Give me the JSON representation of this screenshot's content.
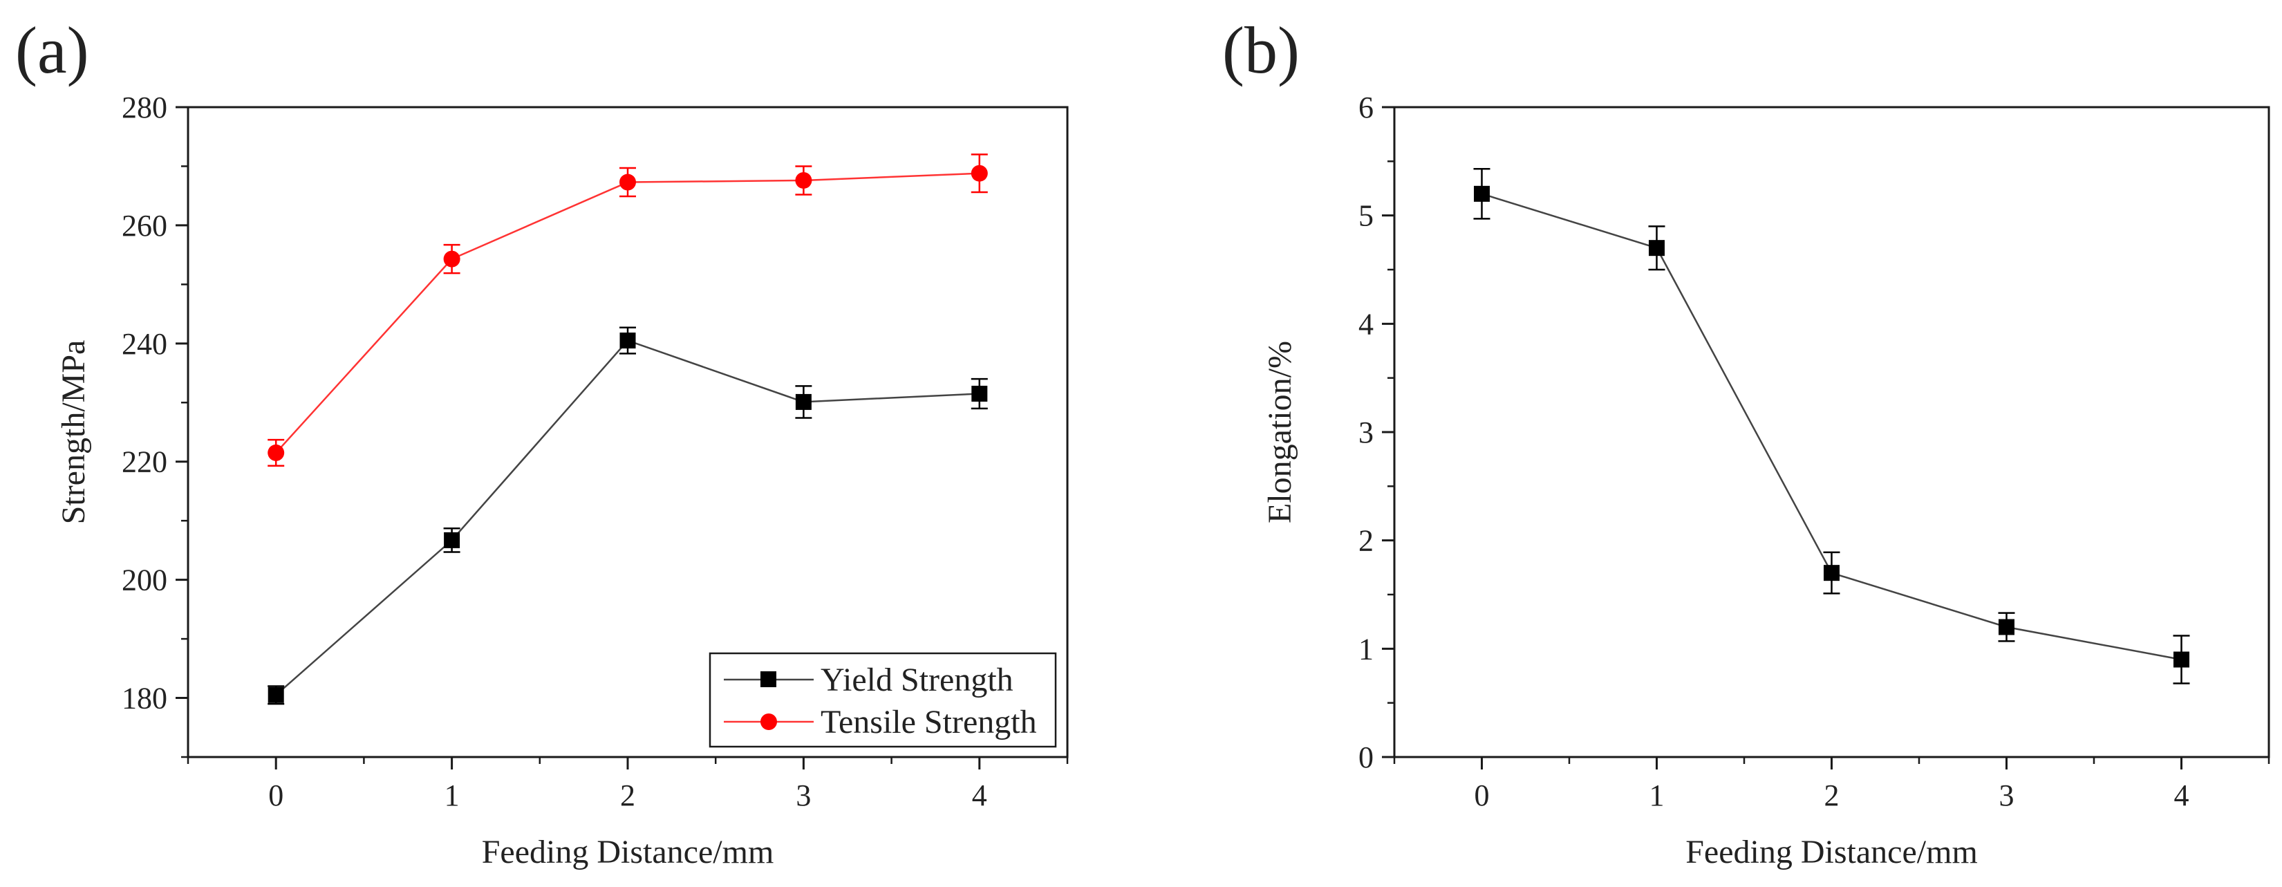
{
  "chart_data": [
    {
      "type": "line",
      "panel_label": "(a)",
      "title": "",
      "xlabel": "Feeding Distance/mm",
      "ylabel": "Strength/MPa",
      "x": [
        0,
        1,
        2,
        3,
        4
      ],
      "x_ticks": [
        "0",
        "1",
        "2",
        "3",
        "4"
      ],
      "xlim": [
        -0.5,
        4.5
      ],
      "ylim": [
        170,
        280
      ],
      "y_ticks": [
        180,
        200,
        220,
        240,
        260,
        280
      ],
      "grid": false,
      "legend": "bottom-right",
      "series": [
        {
          "name": "Yield Strength",
          "marker": "square",
          "color": "#000000",
          "line_color": "#444444",
          "values": [
            180.5,
            206.7,
            240.5,
            230.1,
            231.5
          ],
          "errors": [
            1.5,
            2.0,
            2.2,
            2.7,
            2.5
          ]
        },
        {
          "name": "Tensile Strength",
          "marker": "circle",
          "color": "#ff0000",
          "line_color": "#ff3333",
          "values": [
            221.5,
            254.3,
            267.3,
            267.6,
            268.8
          ],
          "errors": [
            2.2,
            2.4,
            2.4,
            2.4,
            3.2
          ]
        }
      ]
    },
    {
      "type": "line",
      "panel_label": "(b)",
      "title": "",
      "xlabel": "Feeding Distance/mm",
      "ylabel": "Elongation/%",
      "x": [
        0,
        1,
        2,
        3,
        4
      ],
      "x_ticks": [
        "0",
        "1",
        "2",
        "3",
        "4"
      ],
      "xlim": [
        -0.5,
        4.5
      ],
      "ylim": [
        0,
        6
      ],
      "y_ticks": [
        0,
        1,
        2,
        3,
        4,
        5,
        6
      ],
      "grid": false,
      "legend": "none",
      "series": [
        {
          "marker": "square",
          "color": "#000000",
          "line_color": "#444444",
          "values": [
            5.2,
            4.7,
            1.7,
            1.2,
            0.9
          ],
          "errors": [
            0.23,
            0.2,
            0.19,
            0.13,
            0.22
          ]
        }
      ]
    }
  ]
}
